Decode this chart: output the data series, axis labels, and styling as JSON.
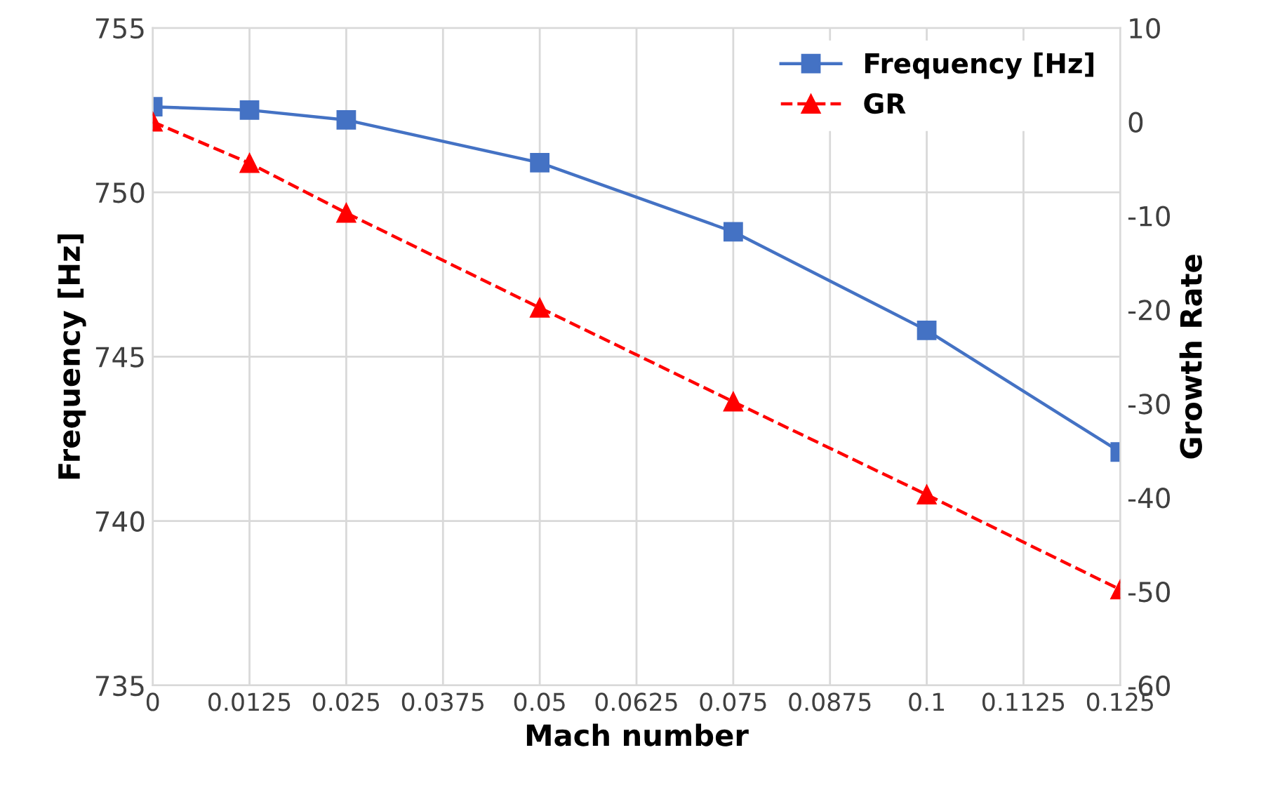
{
  "chart_data": {
    "type": "line",
    "xlabel": "Mach number",
    "ylabel": "Frequency [Hz]",
    "y2label": "Growth Rate",
    "x": [
      0,
      0.0125,
      0.025,
      0.05,
      0.075,
      0.1,
      0.125
    ],
    "series": [
      {
        "name": "Frequency [Hz]",
        "color": "#4472c4",
        "marker": "square",
        "line_style": "solid",
        "values": [
          752.6,
          752.5,
          752.2,
          750.9,
          748.8,
          745.8,
          742.1
        ]
      },
      {
        "name": "GR",
        "color": "#ff0000",
        "marker": "triangle",
        "line_style": "dashed",
        "axis": "y2",
        "values": [
          0,
          -4.4,
          -9.7,
          -19.8,
          -29.8,
          -39.7,
          -49.8
        ]
      }
    ],
    "xlim": [
      0,
      0.125
    ],
    "xticks": [
      0,
      0.0125,
      0.025,
      0.0375,
      0.05,
      0.0625,
      0.075,
      0.0875,
      0.1,
      0.1125,
      0.125
    ],
    "ylim": [
      735,
      755
    ],
    "yticks": [
      735,
      740,
      745,
      750,
      755
    ],
    "y2lim": [
      -60,
      10
    ],
    "y2ticks": [
      -60,
      -50,
      -40,
      -30,
      -20,
      -10,
      0,
      10
    ],
    "grid": true,
    "legend": "top right"
  }
}
